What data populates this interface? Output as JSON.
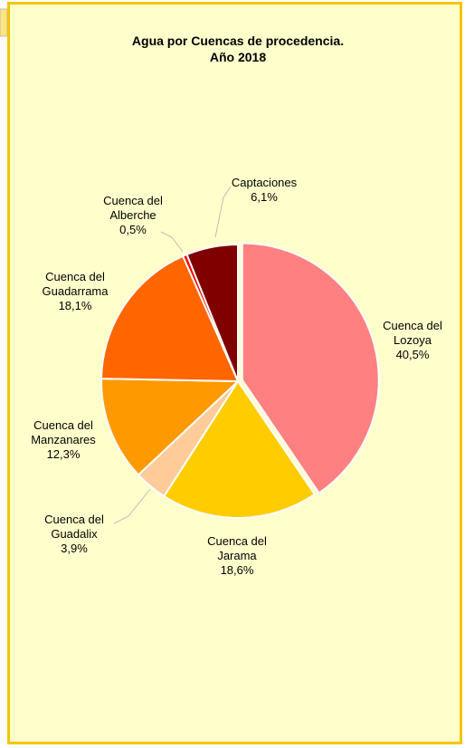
{
  "chart_data": {
    "type": "pie",
    "title": "Agua por Cuencas de procedencia.",
    "subtitle": "Año 2018",
    "categories": [
      "Cuenca del Lozoya",
      "Cuenca del Jarama",
      "Cuenca del Guadalix",
      "Cuenca del Manzanares",
      "Cuenca del Guadarrama",
      "Cuenca del Alberche",
      "Captaciones"
    ],
    "values": [
      40.5,
      18.6,
      3.9,
      12.3,
      18.1,
      0.5,
      6.1
    ],
    "value_labels": [
      "40,5%",
      "18,6%",
      "3,9%",
      "12,3%",
      "18,1%",
      "0,5%",
      "6,1%"
    ],
    "colors": [
      "#ff8080",
      "#ffcc00",
      "#ffcc99",
      "#ff9900",
      "#ff6600",
      "#ff0000",
      "#800000"
    ]
  }
}
